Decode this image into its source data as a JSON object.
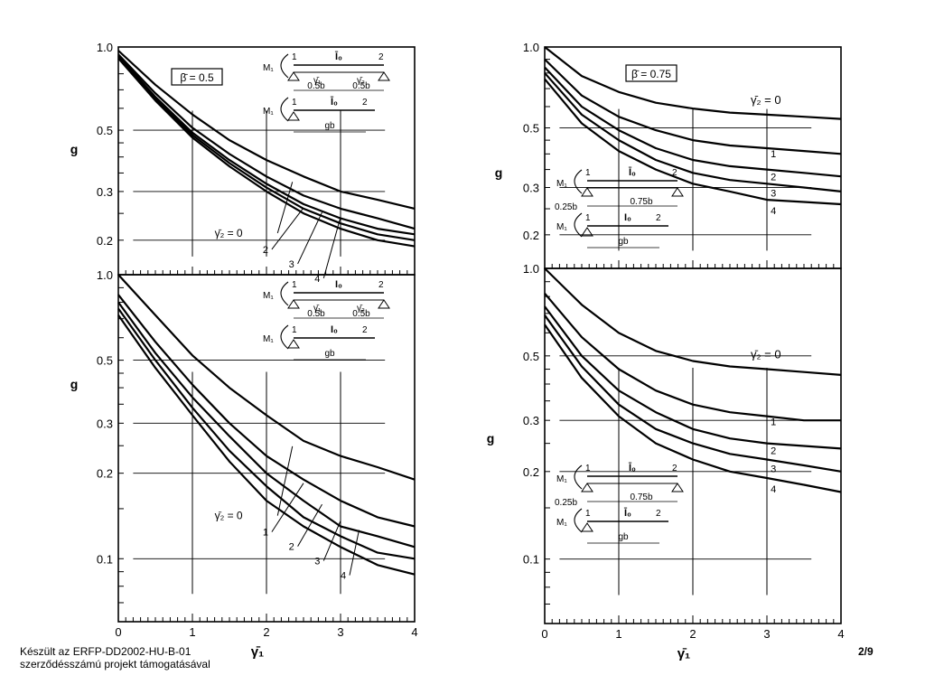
{
  "footer": {
    "line1": "Készült az ERFP-DD2002-HU-B-01",
    "line2": "szerződésszámú projekt támogatásával",
    "page": "2/9"
  },
  "chart_data": [
    {
      "type": "line",
      "ylabel": "g",
      "xlabel": "",
      "yscale": "log",
      "xlim": [
        0,
        4
      ],
      "ylim": [
        0.15,
        1.0
      ],
      "yticks": [
        "1.0",
        "0.5",
        "0.3",
        "0.2"
      ],
      "xticks": [],
      "box_label": "β̄ = 0.5",
      "curve_label": "γ̄₂ = 0",
      "series": [
        {
          "name": "0",
          "x": [
            0,
            0.5,
            1,
            1.5,
            2,
            2.5,
            3,
            3.5,
            4
          ],
          "y": [
            0.97,
            0.73,
            0.57,
            0.46,
            0.39,
            0.34,
            0.3,
            0.28,
            0.26
          ]
        },
        {
          "name": "1",
          "x": [
            0,
            0.5,
            1,
            1.5,
            2,
            2.5,
            3,
            3.5,
            4
          ],
          "y": [
            0.94,
            0.68,
            0.51,
            0.41,
            0.34,
            0.29,
            0.26,
            0.24,
            0.22
          ]
        },
        {
          "name": "2",
          "x": [
            0,
            0.5,
            1,
            1.5,
            2,
            2.5,
            3,
            3.5,
            4
          ],
          "y": [
            0.93,
            0.66,
            0.49,
            0.39,
            0.32,
            0.27,
            0.24,
            0.22,
            0.21
          ]
        },
        {
          "name": "3",
          "x": [
            0,
            0.5,
            1,
            1.5,
            2,
            2.5,
            3,
            3.5,
            4
          ],
          "y": [
            0.92,
            0.65,
            0.48,
            0.38,
            0.31,
            0.26,
            0.23,
            0.21,
            0.2
          ]
        },
        {
          "name": "4",
          "x": [
            0,
            0.5,
            1,
            1.5,
            2,
            2.5,
            3,
            3.5,
            4
          ],
          "y": [
            0.91,
            0.64,
            0.47,
            0.37,
            0.3,
            0.25,
            0.22,
            0.2,
            0.19
          ]
        }
      ],
      "callouts": [
        "2",
        "3",
        "4"
      ],
      "inset": {
        "top_labels": [
          "1",
          "Ī₀",
          "2"
        ],
        "sub_labels": [
          "γ̄₁",
          "γ̄₂"
        ],
        "dims": [
          "0.5b",
          "0.5b"
        ],
        "lower_labels": [
          "1",
          "Ī₀",
          "2"
        ],
        "lower_dim": "gb",
        "moment": "M₁"
      }
    },
    {
      "type": "line",
      "ylabel": "g",
      "xlabel": "γ̄₁",
      "yscale": "log",
      "xlim": [
        0,
        4
      ],
      "ylim": [
        0.06,
        1.0
      ],
      "yticks": [
        "1.0",
        "0.5",
        "0.3",
        "0.2",
        "0.1"
      ],
      "xticks": [
        "0",
        "1",
        "2",
        "3",
        "4"
      ],
      "curve_label": "γ̄₂ = 0",
      "series": [
        {
          "name": "0",
          "x": [
            0,
            0.5,
            1,
            1.5,
            2,
            2.5,
            3,
            3.5,
            4
          ],
          "y": [
            1.0,
            0.72,
            0.52,
            0.4,
            0.32,
            0.26,
            0.23,
            0.21,
            0.19
          ]
        },
        {
          "name": "1",
          "x": [
            0,
            0.5,
            1,
            1.5,
            2,
            2.5,
            3,
            3.5,
            4
          ],
          "y": [
            0.85,
            0.58,
            0.41,
            0.3,
            0.23,
            0.19,
            0.16,
            0.14,
            0.13
          ]
        },
        {
          "name": "2",
          "x": [
            0,
            0.5,
            1,
            1.5,
            2,
            2.5,
            3,
            3.5,
            4
          ],
          "y": [
            0.8,
            0.53,
            0.37,
            0.27,
            0.2,
            0.16,
            0.13,
            0.12,
            0.11
          ]
        },
        {
          "name": "3",
          "x": [
            0,
            0.5,
            1,
            1.5,
            2,
            2.5,
            3,
            3.5,
            4
          ],
          "y": [
            0.76,
            0.5,
            0.34,
            0.24,
            0.18,
            0.14,
            0.12,
            0.105,
            0.1
          ]
        },
        {
          "name": "4",
          "x": [
            0,
            0.5,
            1,
            1.5,
            2,
            2.5,
            3,
            3.5,
            4
          ],
          "y": [
            0.72,
            0.47,
            0.32,
            0.22,
            0.16,
            0.13,
            0.11,
            0.095,
            0.088
          ]
        }
      ],
      "callouts": [
        "1",
        "2",
        "3",
        "4"
      ],
      "inset": {
        "top_labels": [
          "1",
          "I₀",
          "2"
        ],
        "sub_labels": [
          "γ̄₁",
          "γ̄₂"
        ],
        "dims": [
          "0.5b",
          "0.5b"
        ],
        "lower_labels": [
          "1",
          "I₀",
          "2"
        ],
        "lower_dim": "gb",
        "moment": "M₁"
      }
    },
    {
      "type": "line",
      "ylabel": "g",
      "xlabel": "",
      "yscale": "log",
      "xlim": [
        0,
        4
      ],
      "ylim": [
        0.15,
        1.0
      ],
      "yticks": [
        "1.0",
        "0.5",
        "0.3",
        "0.2"
      ],
      "xticks": [],
      "box_label": "β̄ = 0.75",
      "curve_label": "γ̄₂ = 0",
      "series": [
        {
          "name": "0",
          "x": [
            0,
            0.5,
            1,
            1.5,
            2,
            2.5,
            3,
            3.5,
            4
          ],
          "y": [
            1.0,
            0.78,
            0.68,
            0.62,
            0.59,
            0.57,
            0.56,
            0.55,
            0.54
          ]
        },
        {
          "name": "1",
          "x": [
            0,
            0.5,
            1,
            1.5,
            2,
            2.5,
            3,
            3.5,
            4
          ],
          "y": [
            0.9,
            0.66,
            0.55,
            0.49,
            0.45,
            0.43,
            0.42,
            0.41,
            0.4
          ]
        },
        {
          "name": "2",
          "x": [
            0,
            0.5,
            1,
            1.5,
            2,
            2.5,
            3,
            3.5,
            4
          ],
          "y": [
            0.84,
            0.6,
            0.49,
            0.42,
            0.38,
            0.36,
            0.35,
            0.34,
            0.33
          ]
        },
        {
          "name": "3",
          "x": [
            0,
            0.5,
            1,
            1.5,
            2,
            2.5,
            3,
            3.5,
            4
          ],
          "y": [
            0.8,
            0.56,
            0.45,
            0.38,
            0.34,
            0.32,
            0.31,
            0.3,
            0.29
          ]
        },
        {
          "name": "4",
          "x": [
            0,
            0.5,
            1,
            1.5,
            2,
            2.5,
            3,
            3.5,
            4
          ],
          "y": [
            0.76,
            0.52,
            0.41,
            0.35,
            0.31,
            0.29,
            0.27,
            0.265,
            0.26
          ]
        }
      ],
      "callouts": [
        "1",
        "2",
        "3",
        "4"
      ],
      "inset": {
        "top_labels": [
          "1",
          "Ī₀",
          "2"
        ],
        "dims": [
          "0.25b",
          "0.75b"
        ],
        "lower_labels": [
          "1",
          "I₀",
          "2"
        ],
        "lower_dim": "gb",
        "moment": "M₁"
      }
    },
    {
      "type": "line",
      "ylabel": "g",
      "xlabel": "γ̄₁",
      "yscale": "log",
      "xlim": [
        0,
        4
      ],
      "ylim": [
        0.06,
        1.0
      ],
      "yticks": [
        "1.0",
        "0.5",
        "0.3",
        "0.2",
        "0.1"
      ],
      "xticks": [
        "0",
        "1",
        "2",
        "3",
        "4"
      ],
      "curve_label": "γ̄₂ = 0",
      "series": [
        {
          "name": "0",
          "x": [
            0,
            0.5,
            1,
            1.5,
            2,
            2.5,
            3,
            3.5,
            4
          ],
          "y": [
            1.0,
            0.75,
            0.6,
            0.52,
            0.48,
            0.46,
            0.45,
            0.44,
            0.43
          ]
        },
        {
          "name": "1",
          "x": [
            0,
            0.5,
            1,
            1.5,
            2,
            2.5,
            3,
            3.5,
            4
          ],
          "y": [
            0.82,
            0.58,
            0.45,
            0.38,
            0.34,
            0.32,
            0.31,
            0.3,
            0.3
          ]
        },
        {
          "name": "2",
          "x": [
            0,
            0.5,
            1,
            1.5,
            2,
            2.5,
            3,
            3.5,
            4
          ],
          "y": [
            0.74,
            0.5,
            0.38,
            0.32,
            0.28,
            0.26,
            0.25,
            0.245,
            0.24
          ]
        },
        {
          "name": "3",
          "x": [
            0,
            0.5,
            1,
            1.5,
            2,
            2.5,
            3,
            3.5,
            4
          ],
          "y": [
            0.69,
            0.46,
            0.34,
            0.28,
            0.25,
            0.23,
            0.22,
            0.21,
            0.2
          ]
        },
        {
          "name": "4",
          "x": [
            0,
            0.5,
            1,
            1.5,
            2,
            2.5,
            3,
            3.5,
            4
          ],
          "y": [
            0.64,
            0.42,
            0.31,
            0.25,
            0.22,
            0.2,
            0.19,
            0.18,
            0.17
          ]
        }
      ],
      "callouts": [
        "1",
        "2",
        "3",
        "4"
      ],
      "inset": {
        "top_labels": [
          "1",
          "Ī₀",
          "2"
        ],
        "dims": [
          "0.25b",
          "0.75b"
        ],
        "lower_labels": [
          "1",
          "Ī₀",
          "2"
        ],
        "lower_dim": "gb",
        "moment": "M₁"
      }
    }
  ]
}
